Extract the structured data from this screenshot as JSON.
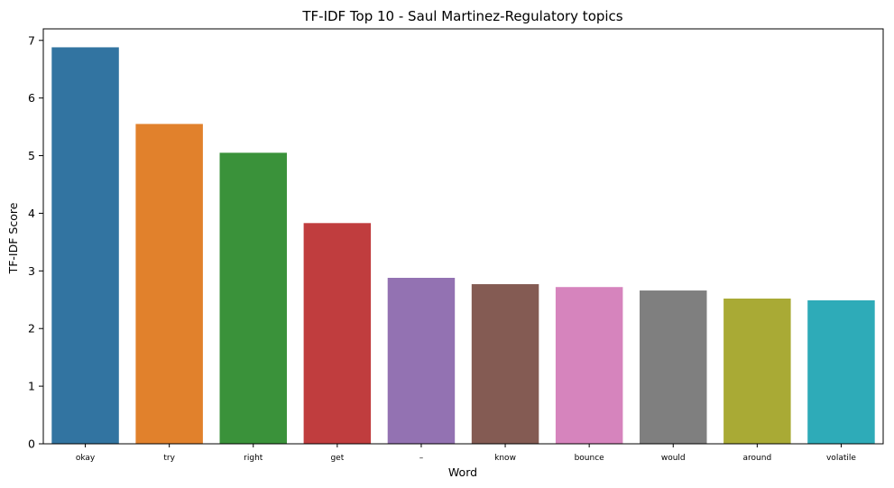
{
  "chart_data": {
    "type": "bar",
    "title": "TF-IDF Top 10 - Saul Martinez-Regulatory topics",
    "xlabel": "Word",
    "ylabel": "TF-IDF Score",
    "ylim": [
      0,
      7.2
    ],
    "yticks": [
      "0",
      "1",
      "2",
      "3",
      "4",
      "5",
      "6",
      "7"
    ],
    "grid": false,
    "categories": [
      "okay",
      "try",
      "right",
      "get",
      "–",
      "know",
      "bounce",
      "would",
      "around",
      "volatile"
    ],
    "values": [
      6.88,
      5.55,
      5.05,
      3.83,
      2.88,
      2.77,
      2.72,
      2.66,
      2.52,
      2.49
    ],
    "colors": [
      "#3274a1",
      "#e1812c",
      "#3a923a",
      "#c03d3e",
      "#9372b2",
      "#845b53",
      "#d684bd",
      "#7f7f7f",
      "#a9aa35",
      "#2eabb8"
    ]
  }
}
